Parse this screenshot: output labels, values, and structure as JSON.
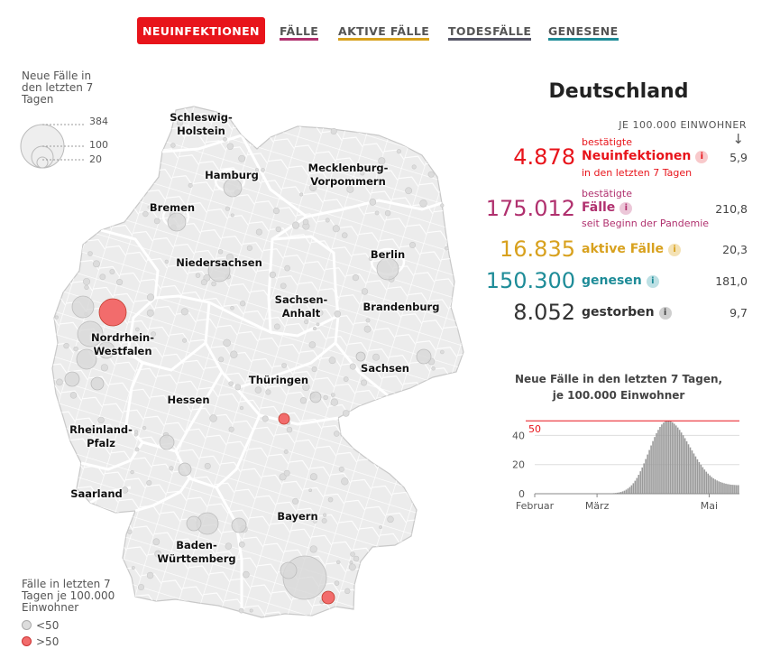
{
  "tabs": [
    {
      "label": "NEUINFEKTIONEN",
      "active": true,
      "color": "#e8141b"
    },
    {
      "label": "FÄLLE",
      "active": false,
      "color": "#b0306e"
    },
    {
      "label": "AKTIVE FÄLLE",
      "active": false,
      "color": "#d8a11e"
    },
    {
      "label": "TODESFÄLLE",
      "active": false,
      "color": "#555566"
    },
    {
      "label": "GENESENE",
      "active": false,
      "color": "#1e8c98"
    }
  ],
  "legend": {
    "size_title": "Neue Fälle in den letzten 7 Tagen",
    "size_values": [
      "384",
      "100",
      "20"
    ],
    "color_title": "Fälle in letzten 7 Tagen je 100.000 Einwohner",
    "color_items": [
      {
        "label": "<50",
        "color": "#dddddd"
      },
      {
        "label": ">50",
        "color": "#f26c6c"
      }
    ]
  },
  "map": {
    "states": [
      "Schleswig-\nHolstein",
      "Hamburg",
      "Mecklenburg-\nVorpommern",
      "Bremen",
      "Niedersachsen",
      "Berlin",
      "Sachsen-\nAnhalt",
      "Brandenburg",
      "Nordrhein-\nWestfalen",
      "Sachsen",
      "Thüringen",
      "Hessen",
      "Rheinland-\nPfalz",
      "Saarland",
      "Bayern",
      "Baden-\nWürttemberg"
    ]
  },
  "stats": {
    "title": "Deutschland",
    "per_header": "JE 100.000 EINWOHNER",
    "per_arrow": "↓",
    "items": [
      {
        "value": "4.878",
        "pre": "bestätigte",
        "label": "Neuinfektionen",
        "post": "in den letzten 7 Tagen",
        "per": "5,9",
        "color": "#e8141b",
        "info_bg": "#f8c9cb"
      },
      {
        "value": "175.012",
        "pre": "bestätigte",
        "label": "Fälle",
        "post": "seit Beginn der Pandemie",
        "per": "210,8",
        "color": "#b0306e",
        "info_bg": "#ecc7d8"
      },
      {
        "value": "16.835",
        "pre": "",
        "label": "aktive Fälle",
        "post": "",
        "per": "20,3",
        "color": "#d8a11e",
        "info_bg": "#f4e2b5"
      },
      {
        "value": "150.300",
        "pre": "",
        "label": "genesen",
        "post": "",
        "per": "181,0",
        "color": "#1e8c98",
        "info_bg": "#bde0e4"
      },
      {
        "value": "8.052",
        "pre": "",
        "label": "gestorben",
        "post": "",
        "per": "9,7",
        "color": "#333333",
        "info_bg": "#cfcfcf"
      }
    ],
    "info_glyph": "i"
  },
  "mini_chart": {
    "title_line1": "Neue Fälle in den letzten 7 Tagen,",
    "title_line2": "je 100.000 Einwohner"
  },
  "chart_data": {
    "type": "bar",
    "title": "Neue Fälle in den letzten 7 Tagen, je 100.000 Einwohner",
    "ylim": [
      0,
      52
    ],
    "yticks": [
      0,
      20,
      40
    ],
    "x_tick_labels": [
      "Februar",
      "März",
      "Mai"
    ],
    "threshold": {
      "value": 50,
      "label": "50",
      "color": "#e8141b"
    },
    "bar_color": "#9a9a9a",
    "values": [
      0,
      0,
      0,
      0,
      0,
      0,
      0,
      0,
      0,
      0,
      0,
      0,
      0,
      0,
      0,
      0,
      0,
      0,
      0,
      0,
      0,
      0,
      0,
      0,
      0,
      0,
      0,
      0,
      0,
      0,
      0,
      0,
      0,
      0,
      0,
      0,
      0,
      0,
      0,
      0,
      0.1,
      0.1,
      0.2,
      0.3,
      0.4,
      0.5,
      0.7,
      0.9,
      1.2,
      1.6,
      2.1,
      2.8,
      3.6,
      4.6,
      5.8,
      7.2,
      8.9,
      10.8,
      13,
      15.4,
      18,
      20.8,
      23.8,
      26.9,
      30,
      33.1,
      36.1,
      38.9,
      41.5,
      43.8,
      45.8,
      47.5,
      48.8,
      49.7,
      50.1,
      50.1,
      49.7,
      49,
      48,
      46.8,
      45.4,
      43.8,
      42,
      40.1,
      38.1,
      36,
      33.9,
      31.8,
      29.7,
      27.6,
      25.6,
      23.6,
      21.7,
      19.9,
      18.2,
      16.6,
      15.1,
      13.8,
      12.6,
      11.5,
      10.6,
      9.8,
      9.1,
      8.5,
      8,
      7.6,
      7.2,
      6.9,
      6.6,
      6.4,
      6.2,
      6.1,
      6,
      5.9,
      5.9
    ]
  }
}
